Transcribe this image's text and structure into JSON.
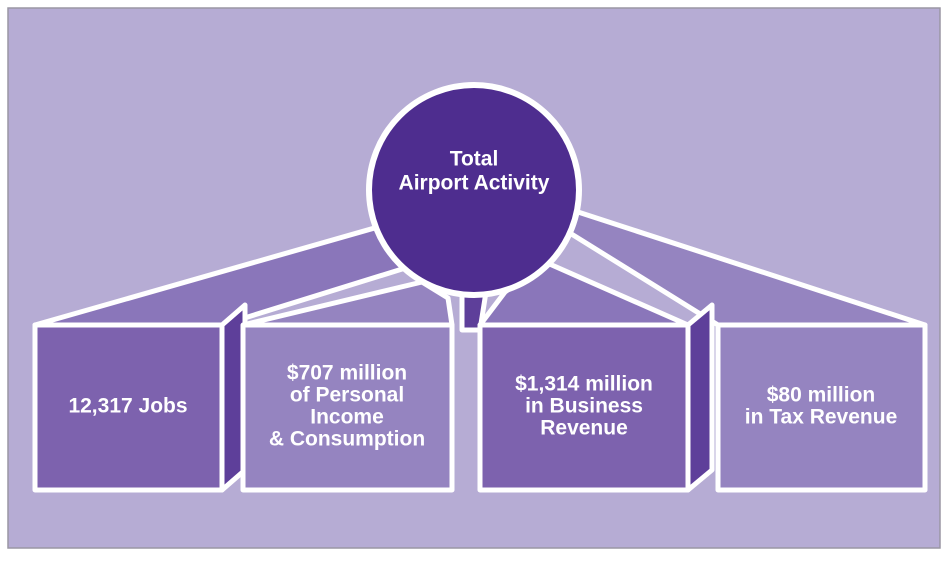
{
  "center": {
    "lines": [
      "Total",
      "Airport Activity"
    ]
  },
  "boxes": [
    {
      "lines": [
        "12,317 Jobs"
      ]
    },
    {
      "lines": [
        "$707 million",
        "of Personal",
        "Income",
        "& Consumption"
      ]
    },
    {
      "lines": [
        "$1,314 million",
        "in Business",
        "Revenue"
      ]
    },
    {
      "lines": [
        "$80 million",
        "in Tax Revenue"
      ]
    }
  ]
}
